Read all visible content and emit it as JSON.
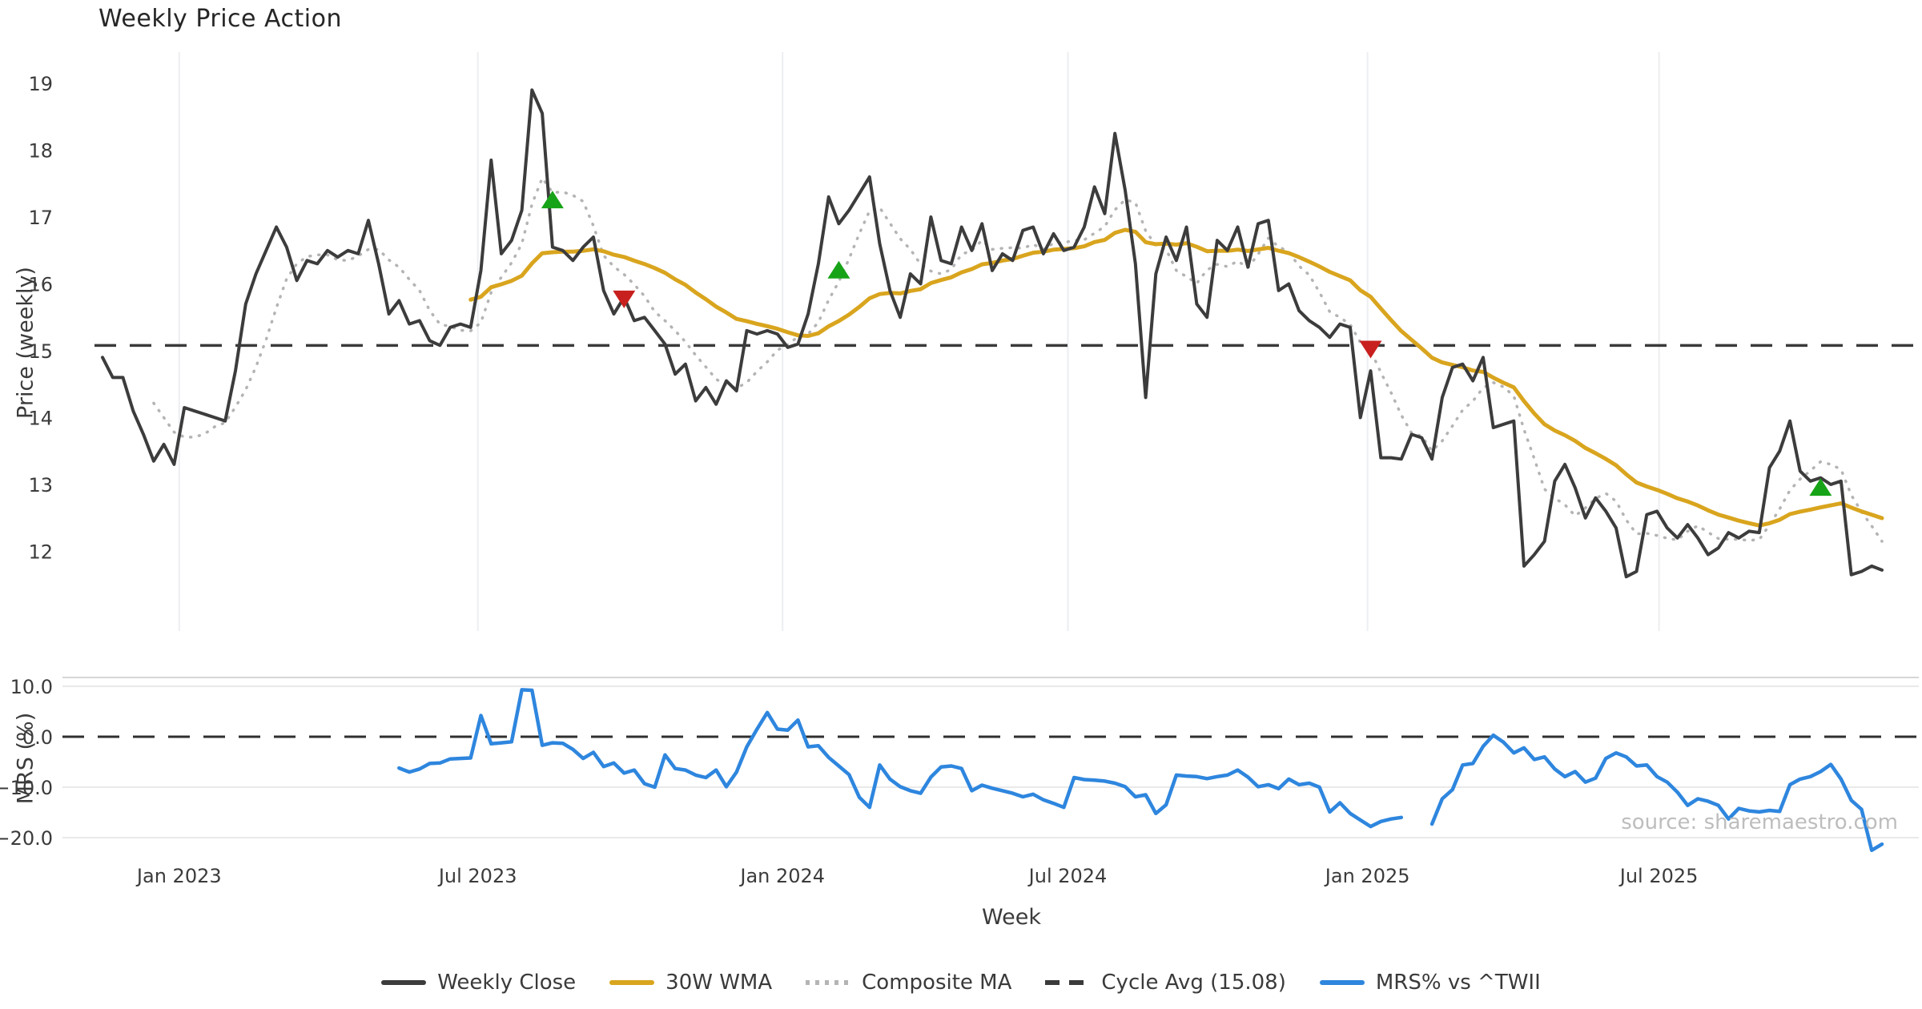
{
  "title": "Weekly Price Action",
  "labels": {
    "price_ylabel": "Price (weekly)",
    "mrs_ylabel": "MRS (%)",
    "xlabel": "Week"
  },
  "source_note": "source: sharemaestro.com",
  "colors": {
    "close": "#3C3C3C",
    "wma": "#D9A51E",
    "composite": "#B4B4B4",
    "cycle": "#3A3A3A",
    "mrs": "#2E86DE",
    "buy": "#17A317",
    "sell": "#C8201E",
    "grid_vertical": "#ECEEF1",
    "grid_horizontal": "#E9E9E9",
    "panel_border": "#D6D6D6",
    "tick_text": "#3B3B3B"
  },
  "legend": [
    {
      "label": "Weekly Close",
      "color": "#3C3C3C",
      "style": "solid"
    },
    {
      "label": "30W WMA",
      "color": "#D9A51E",
      "style": "solid"
    },
    {
      "label": "Composite MA",
      "color": "#B4B4B4",
      "style": "dotted"
    },
    {
      "label": "Cycle Avg (15.08)",
      "color": "#3A3A3A",
      "style": "dashed"
    },
    {
      "label": "MRS% vs ^TWII",
      "color": "#2E86DE",
      "style": "solid"
    }
  ],
  "chart_data": [
    {
      "id": "price_panel",
      "type": "line",
      "ylabel": "Price (weekly)",
      "ylim": [
        11.4,
        19.4
      ],
      "y_ticks": [
        19,
        18,
        17,
        16,
        15,
        14,
        13,
        12
      ],
      "x_ticks": [
        {
          "label": "Jan 2023",
          "i": 7.5
        },
        {
          "label": "Jul 2023",
          "i": 36.7
        },
        {
          "label": "Jan 2024",
          "i": 66.5
        },
        {
          "label": "Jul 2024",
          "i": 94.4
        },
        {
          "label": "Jan 2025",
          "i": 123.7
        },
        {
          "label": "Jul 2025",
          "i": 152.2
        }
      ],
      "x_range_note": "weekly points, ~Nov 2022 through Nov 2025",
      "cycle_avg_value": 15.08,
      "series": [
        {
          "name": "Weekly Close",
          "style": "solid",
          "values": [
            14.9,
            14.6,
            14.6,
            14.1,
            13.75,
            13.35,
            13.6,
            13.3,
            14.15,
            14.1,
            14.05,
            14.0,
            13.95,
            14.7,
            15.7,
            16.15,
            16.5,
            16.85,
            16.55,
            16.05,
            16.35,
            16.3,
            16.5,
            16.4,
            16.5,
            16.45,
            16.95,
            16.3,
            15.55,
            15.75,
            15.4,
            15.45,
            15.15,
            15.08,
            15.35,
            15.4,
            15.35,
            16.2,
            17.85,
            16.45,
            16.65,
            17.1,
            18.9,
            18.55,
            16.55,
            16.5,
            16.35,
            16.55,
            16.7,
            15.9,
            15.55,
            15.8,
            15.45,
            15.5,
            15.3,
            15.1,
            14.65,
            14.8,
            14.25,
            14.45,
            14.2,
            14.55,
            14.4,
            15.3,
            15.25,
            15.3,
            15.25,
            15.05,
            15.1,
            15.55,
            16.3,
            17.3,
            16.9,
            17.1,
            17.35,
            17.6,
            16.6,
            15.9,
            15.5,
            16.15,
            16.0,
            17.0,
            16.35,
            16.3,
            16.85,
            16.5,
            16.9,
            16.2,
            16.45,
            16.35,
            16.8,
            16.85,
            16.45,
            16.75,
            16.5,
            16.55,
            16.85,
            17.45,
            17.05,
            18.25,
            17.4,
            16.3,
            14.3,
            16.15,
            16.7,
            16.35,
            16.85,
            15.7,
            15.5,
            16.65,
            16.5,
            16.85,
            16.25,
            16.9,
            16.95,
            15.9,
            16.0,
            15.6,
            15.45,
            15.35,
            15.2,
            15.4,
            15.35,
            14.0,
            14.7,
            13.4,
            13.4,
            13.38,
            13.75,
            13.7,
            13.38,
            14.3,
            14.75,
            14.8,
            14.55,
            14.9,
            13.85,
            13.9,
            13.95,
            11.78,
            11.95,
            12.15,
            13.05,
            13.3,
            12.95,
            12.5,
            12.8,
            12.6,
            12.35,
            11.62,
            11.7,
            12.55,
            12.6,
            12.35,
            12.2,
            12.4,
            12.2,
            11.95,
            12.05,
            12.28,
            12.2,
            12.3,
            12.28,
            13.25,
            13.5,
            13.95,
            13.2,
            13.05,
            13.1,
            13.0,
            13.05,
            11.65,
            11.7,
            11.78,
            11.72
          ]
        },
        {
          "name": "30W WMA",
          "style": "solid",
          "derived": "30-point linearly-weighted moving average of Weekly Close",
          "start_index": 36
        },
        {
          "name": "Composite MA",
          "style": "dotted",
          "derived": "6-point simple moving average of Weekly Close",
          "start_index": 5
        },
        {
          "name": "Cycle Avg (15.08)",
          "style": "dashed",
          "value": 15.08
        }
      ],
      "buy_signals": [
        {
          "i": 44,
          "price": 17.25
        },
        {
          "i": 72,
          "price": 16.2
        },
        {
          "i": 168,
          "price": 12.95
        }
      ],
      "sell_signals": [
        {
          "i": 51,
          "price": 15.78
        },
        {
          "i": 124,
          "price": 15.03
        }
      ]
    },
    {
      "id": "mrs_panel",
      "type": "line",
      "ylabel": "MRS (%)",
      "xlabel": "Week",
      "ylim": [
        -24,
        12
      ],
      "y_ticks": [
        10.0,
        0.0,
        -10.0,
        -20.0
      ],
      "y_tick_labels": [
        "10.0",
        "0.0",
        "−10.0",
        "−20.0"
      ],
      "zero_line": 0.0,
      "series": [
        {
          "name": "MRS% vs ^TWII",
          "style": "solid",
          "values": [
            null,
            null,
            null,
            null,
            null,
            null,
            null,
            null,
            null,
            null,
            null,
            null,
            null,
            null,
            null,
            null,
            null,
            null,
            null,
            null,
            null,
            null,
            null,
            null,
            null,
            null,
            null,
            null,
            null,
            -6.2,
            -7,
            -6.4,
            -5.3,
            -5.2,
            -4.4,
            -4.3,
            -4.2,
            4.2,
            -1.4,
            -1.2,
            -1,
            9.3,
            9.2,
            -1.7,
            -1.2,
            -1.3,
            -2.5,
            -4.3,
            -3.1,
            -5.9,
            -5.2,
            -7.2,
            -6.6,
            -9.3,
            -10,
            -3.6,
            -6.3,
            -6.6,
            -7.6,
            -8.1,
            -6.6,
            -9.9,
            -7,
            -2,
            1.5,
            4.8,
            1.5,
            1.3,
            3.3,
            -2,
            -1.8,
            -4.1,
            -5.8,
            -7.5,
            -12,
            -14,
            -5.6,
            -8.4,
            -9.9,
            -10.7,
            -11.2,
            -8,
            -6,
            -5.8,
            -6.3,
            -10.7,
            -9.6,
            -10.2,
            -10.7,
            -11.2,
            -11.9,
            -11.4,
            -12.5,
            -13.2,
            -14,
            -8.1,
            -8.5,
            -8.6,
            -8.8,
            -9.2,
            -9.9,
            -11.9,
            -11.5,
            -15.2,
            -13.5,
            -7.6,
            -7.8,
            -7.9,
            -8.3,
            -7.9,
            -7.6,
            -6.6,
            -8,
            -9.9,
            -9.5,
            -10.3,
            -8.4,
            -9.5,
            -9.2,
            -10,
            -14.9,
            -13.1,
            -15.2,
            -16.5,
            -17.8,
            -16.8,
            -16.3,
            -16,
            null,
            null,
            -17.3,
            -12.3,
            -10.5,
            -5.6,
            -5.3,
            -1.9,
            0.3,
            -1.1,
            -3.2,
            -2.2,
            -4.5,
            -4,
            -6.4,
            -7.9,
            -6.9,
            -9,
            -8.2,
            -4.3,
            -3.2,
            -4,
            -5.8,
            -5.6,
            -7.9,
            -9,
            -11,
            -13.6,
            -12.3,
            -12.8,
            -13.6,
            -16.3,
            -14.2,
            -14.7,
            -14.9,
            -14.6,
            -14.8,
            -9.5,
            -8.4,
            -7.9,
            -6.9,
            -5.5,
            -8.4,
            -12.6,
            -14.4,
            -22.5,
            -21.3
          ]
        }
      ]
    }
  ]
}
